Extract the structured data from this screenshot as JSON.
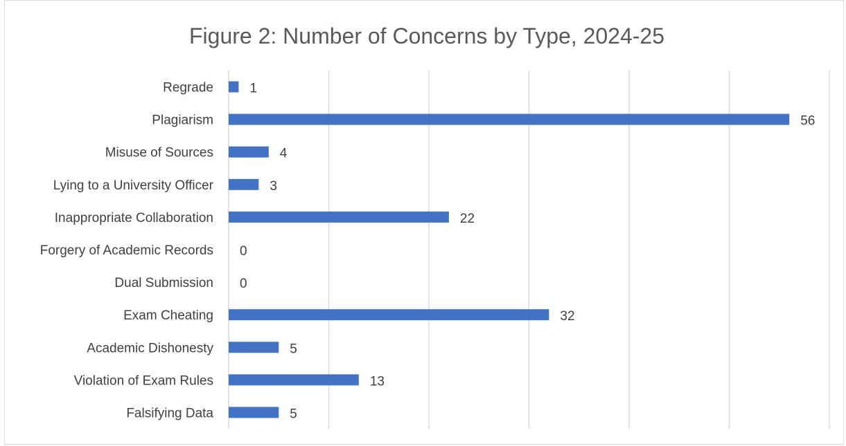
{
  "chart_data": {
    "type": "bar",
    "orientation": "horizontal",
    "title": "Figure 2: Number of Concerns by Type, 2024-25",
    "categories": [
      "Regrade",
      "Plagiarism",
      "Misuse of Sources",
      "Lying to a University Officer",
      "Inappropriate Collaboration",
      "Forgery of Academic Records",
      "Dual Submission",
      "Exam Cheating",
      "Academic Dishonesty",
      "Violation of Exam Rules",
      "Falsifying Data"
    ],
    "values": [
      1,
      56,
      4,
      3,
      22,
      0,
      0,
      32,
      5,
      13,
      5
    ],
    "xlim": [
      0,
      60
    ],
    "grid": true,
    "data_labels": true,
    "bar_color": "#4472C4",
    "grid_color": "#D9D9D9"
  }
}
